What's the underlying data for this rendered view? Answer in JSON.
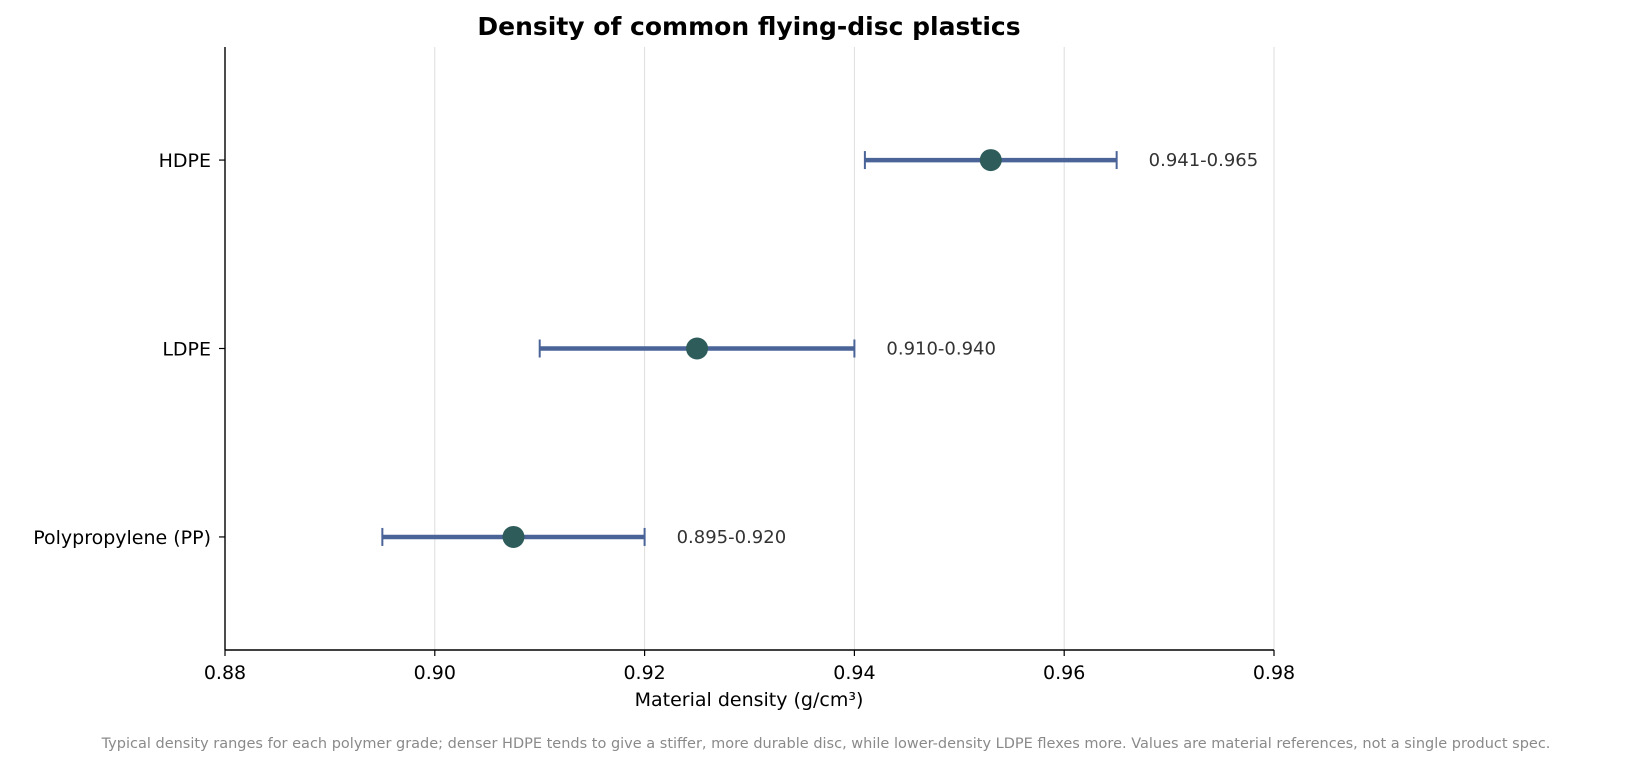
{
  "chart_data": {
    "type": "range",
    "title": "Density of common flying-disc plastics",
    "xlabel": "Material density (g/cm³)",
    "ylabel": "",
    "xlim": [
      0.88,
      0.98
    ],
    "xticks": [
      "0.88",
      "0.90",
      "0.92",
      "0.94",
      "0.96",
      "0.98"
    ],
    "grid": "vertical",
    "categories": [
      "Polypropylene (PP)",
      "LDPE",
      "HDPE"
    ],
    "series": [
      {
        "ranges": [
          {
            "category": "Polypropylene (PP)",
            "low": 0.895,
            "high": 0.92,
            "mid": 0.9075,
            "label": "0.895-0.920"
          },
          {
            "category": "LDPE",
            "low": 0.91,
            "high": 0.94,
            "mid": 0.925,
            "label": "0.910-0.940"
          },
          {
            "category": "HDPE",
            "low": 0.941,
            "high": 0.965,
            "mid": 0.953,
            "label": "0.941-0.965"
          }
        ]
      }
    ],
    "colors": {
      "bar": "#4a6498",
      "marker": "#2d5c5a",
      "grid": "#dddddd",
      "axis": "#000000"
    }
  },
  "caption": "Typical density ranges for each polymer grade; denser HDPE tends to give a stiffer, more durable disc, while lower-density LDPE flexes more. Values are material references, not a single product spec."
}
